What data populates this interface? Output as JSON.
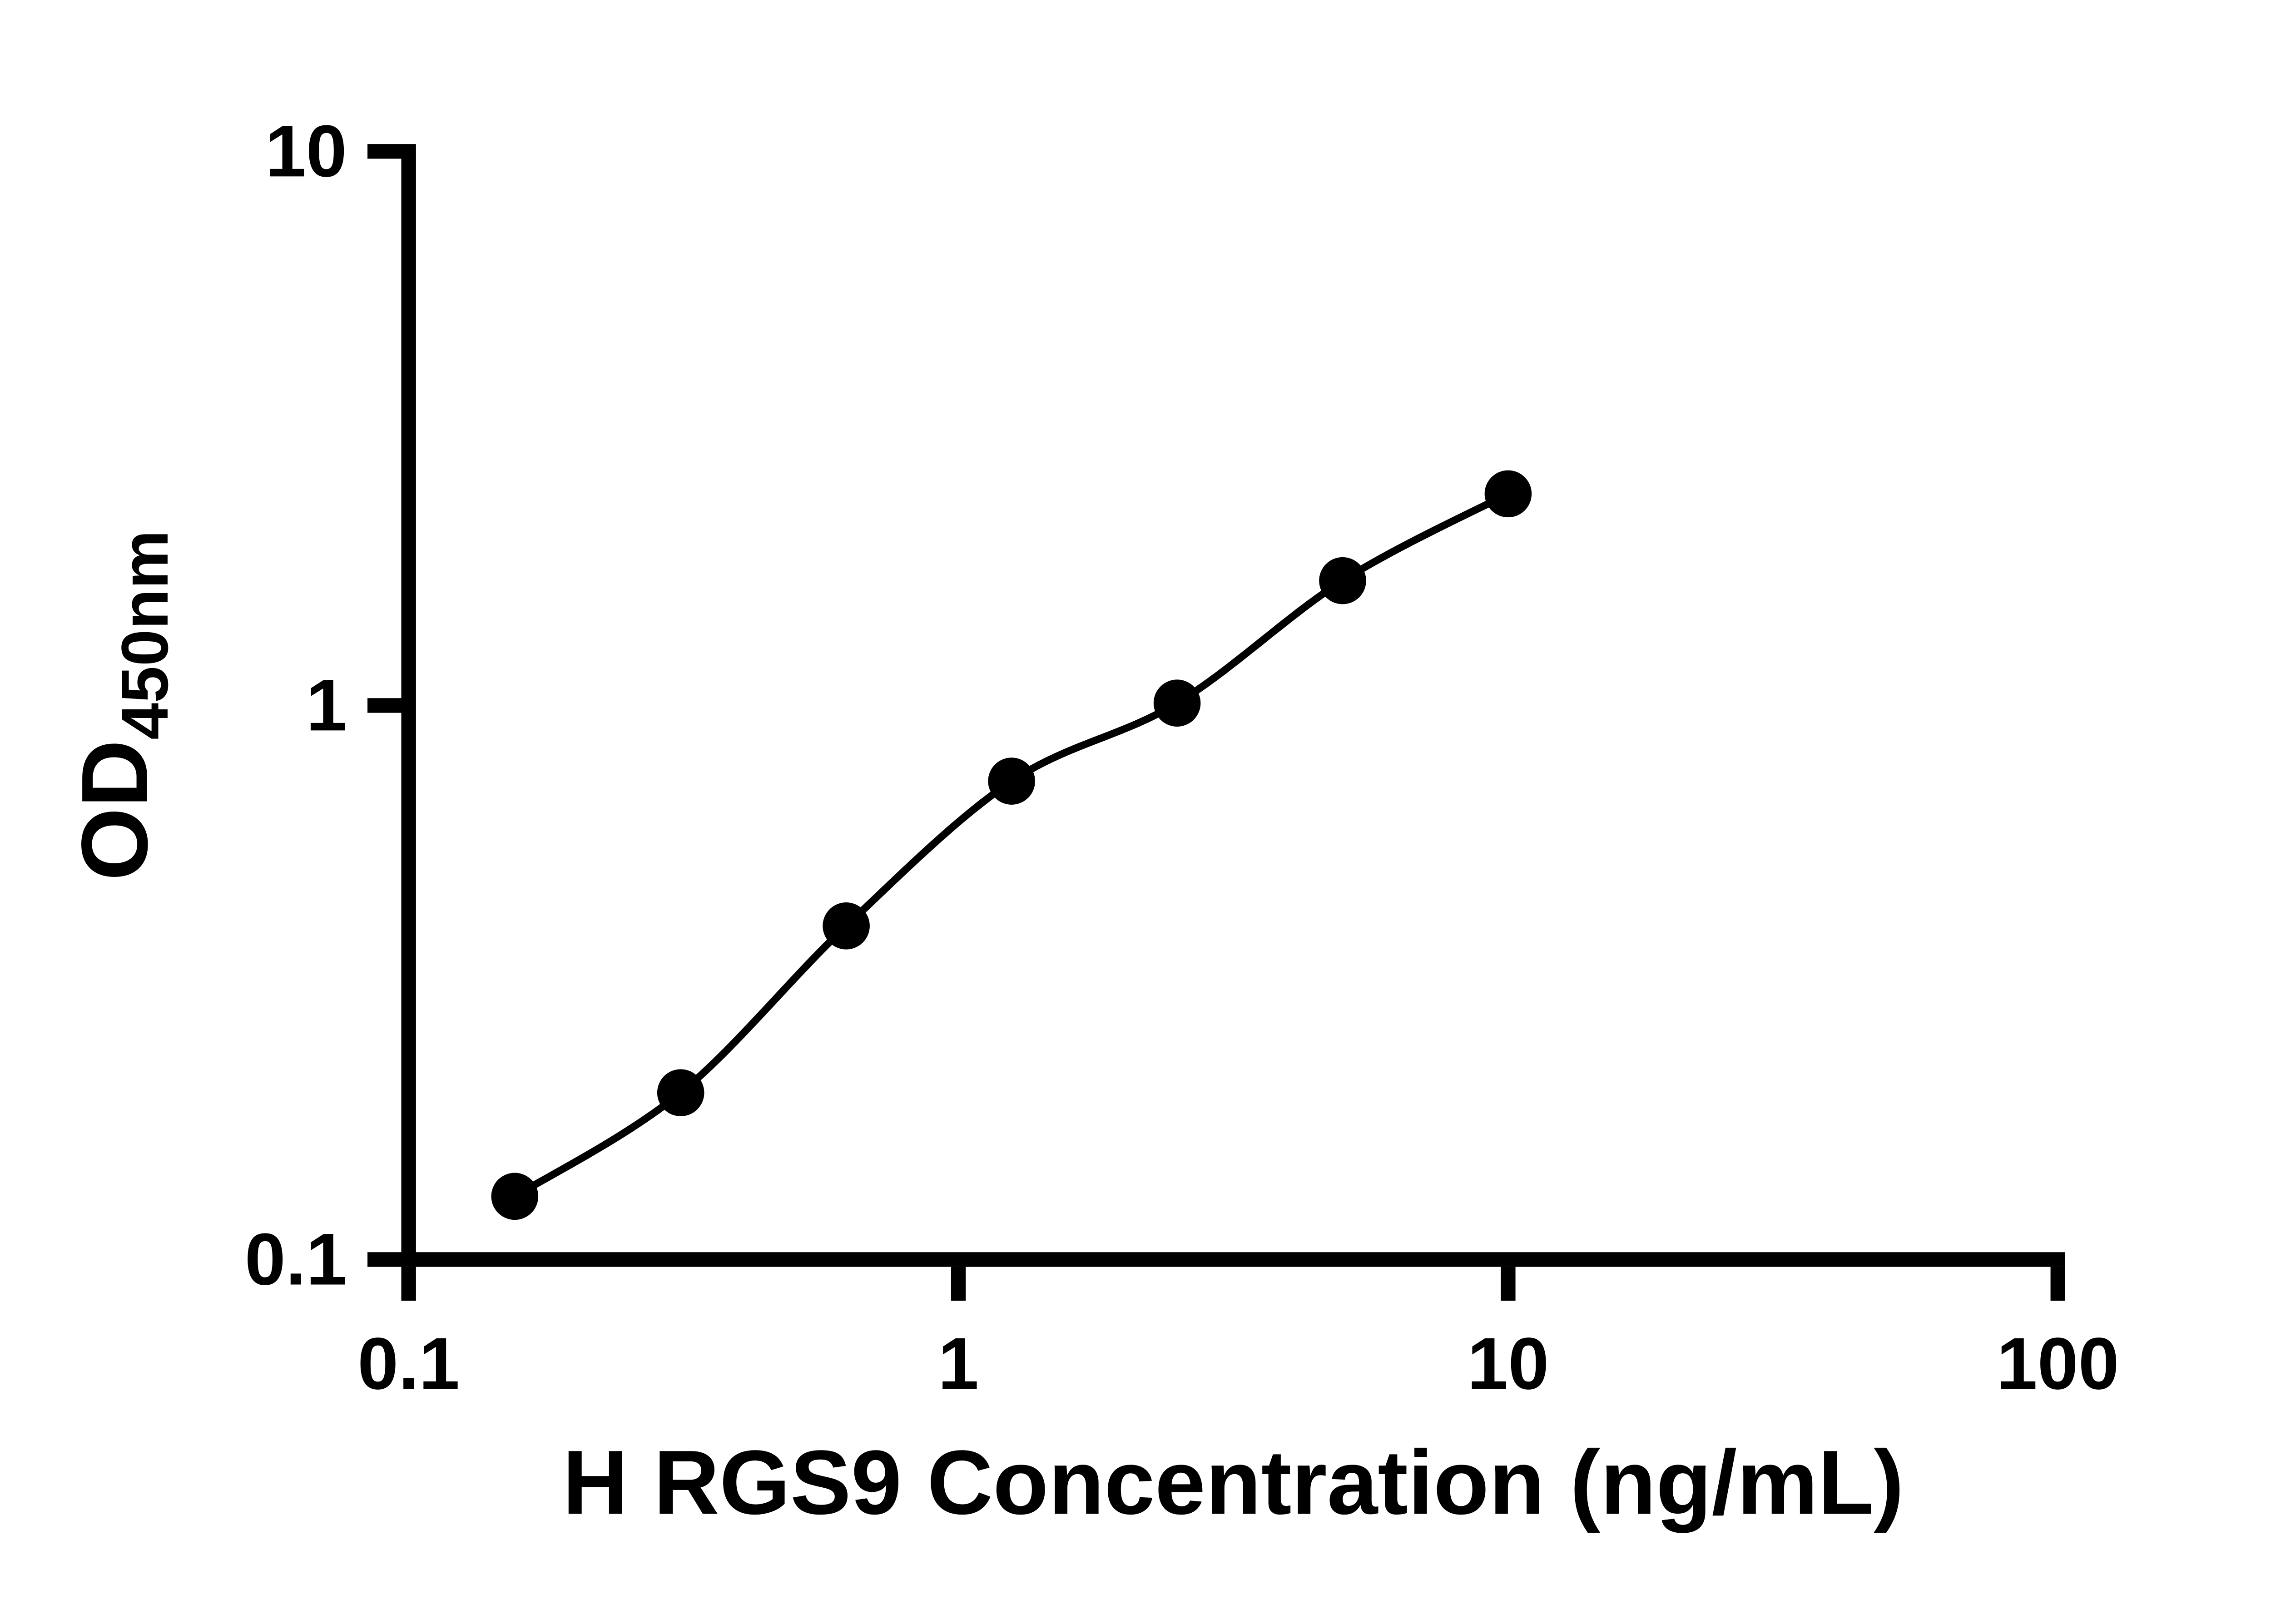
{
  "figure": {
    "background_color": "#ffffff",
    "axis_color": "#000000",
    "point_color": "#000000",
    "curve_color": "#000000"
  },
  "chart_data": {
    "type": "scatter",
    "subtype": "elisa-standard-curve-with-fit-line",
    "x_scale": "log",
    "y_scale": "log",
    "title": "",
    "xlabel": "H RGS9 Concentration (ng/mL)",
    "ylabel_main": "OD",
    "ylabel_sub": "450nm",
    "xlim": [
      0.1,
      100
    ],
    "ylim": [
      0.1,
      10
    ],
    "x_ticks": [
      0.1,
      1,
      10,
      100
    ],
    "x_tick_labels": [
      "0.1",
      "1",
      "10",
      "100"
    ],
    "y_ticks": [
      0.1,
      1,
      10
    ],
    "y_tick_labels": [
      "0.1",
      "1",
      "10"
    ],
    "grid": false,
    "legend": false,
    "marker": "filled-circle",
    "points": [
      {
        "x": 0.156,
        "y": 0.13
      },
      {
        "x": 0.3125,
        "y": 0.2
      },
      {
        "x": 0.625,
        "y": 0.4
      },
      {
        "x": 1.25,
        "y": 0.73
      },
      {
        "x": 2.5,
        "y": 1.01
      },
      {
        "x": 5,
        "y": 1.68
      },
      {
        "x": 10,
        "y": 2.41
      }
    ]
  }
}
